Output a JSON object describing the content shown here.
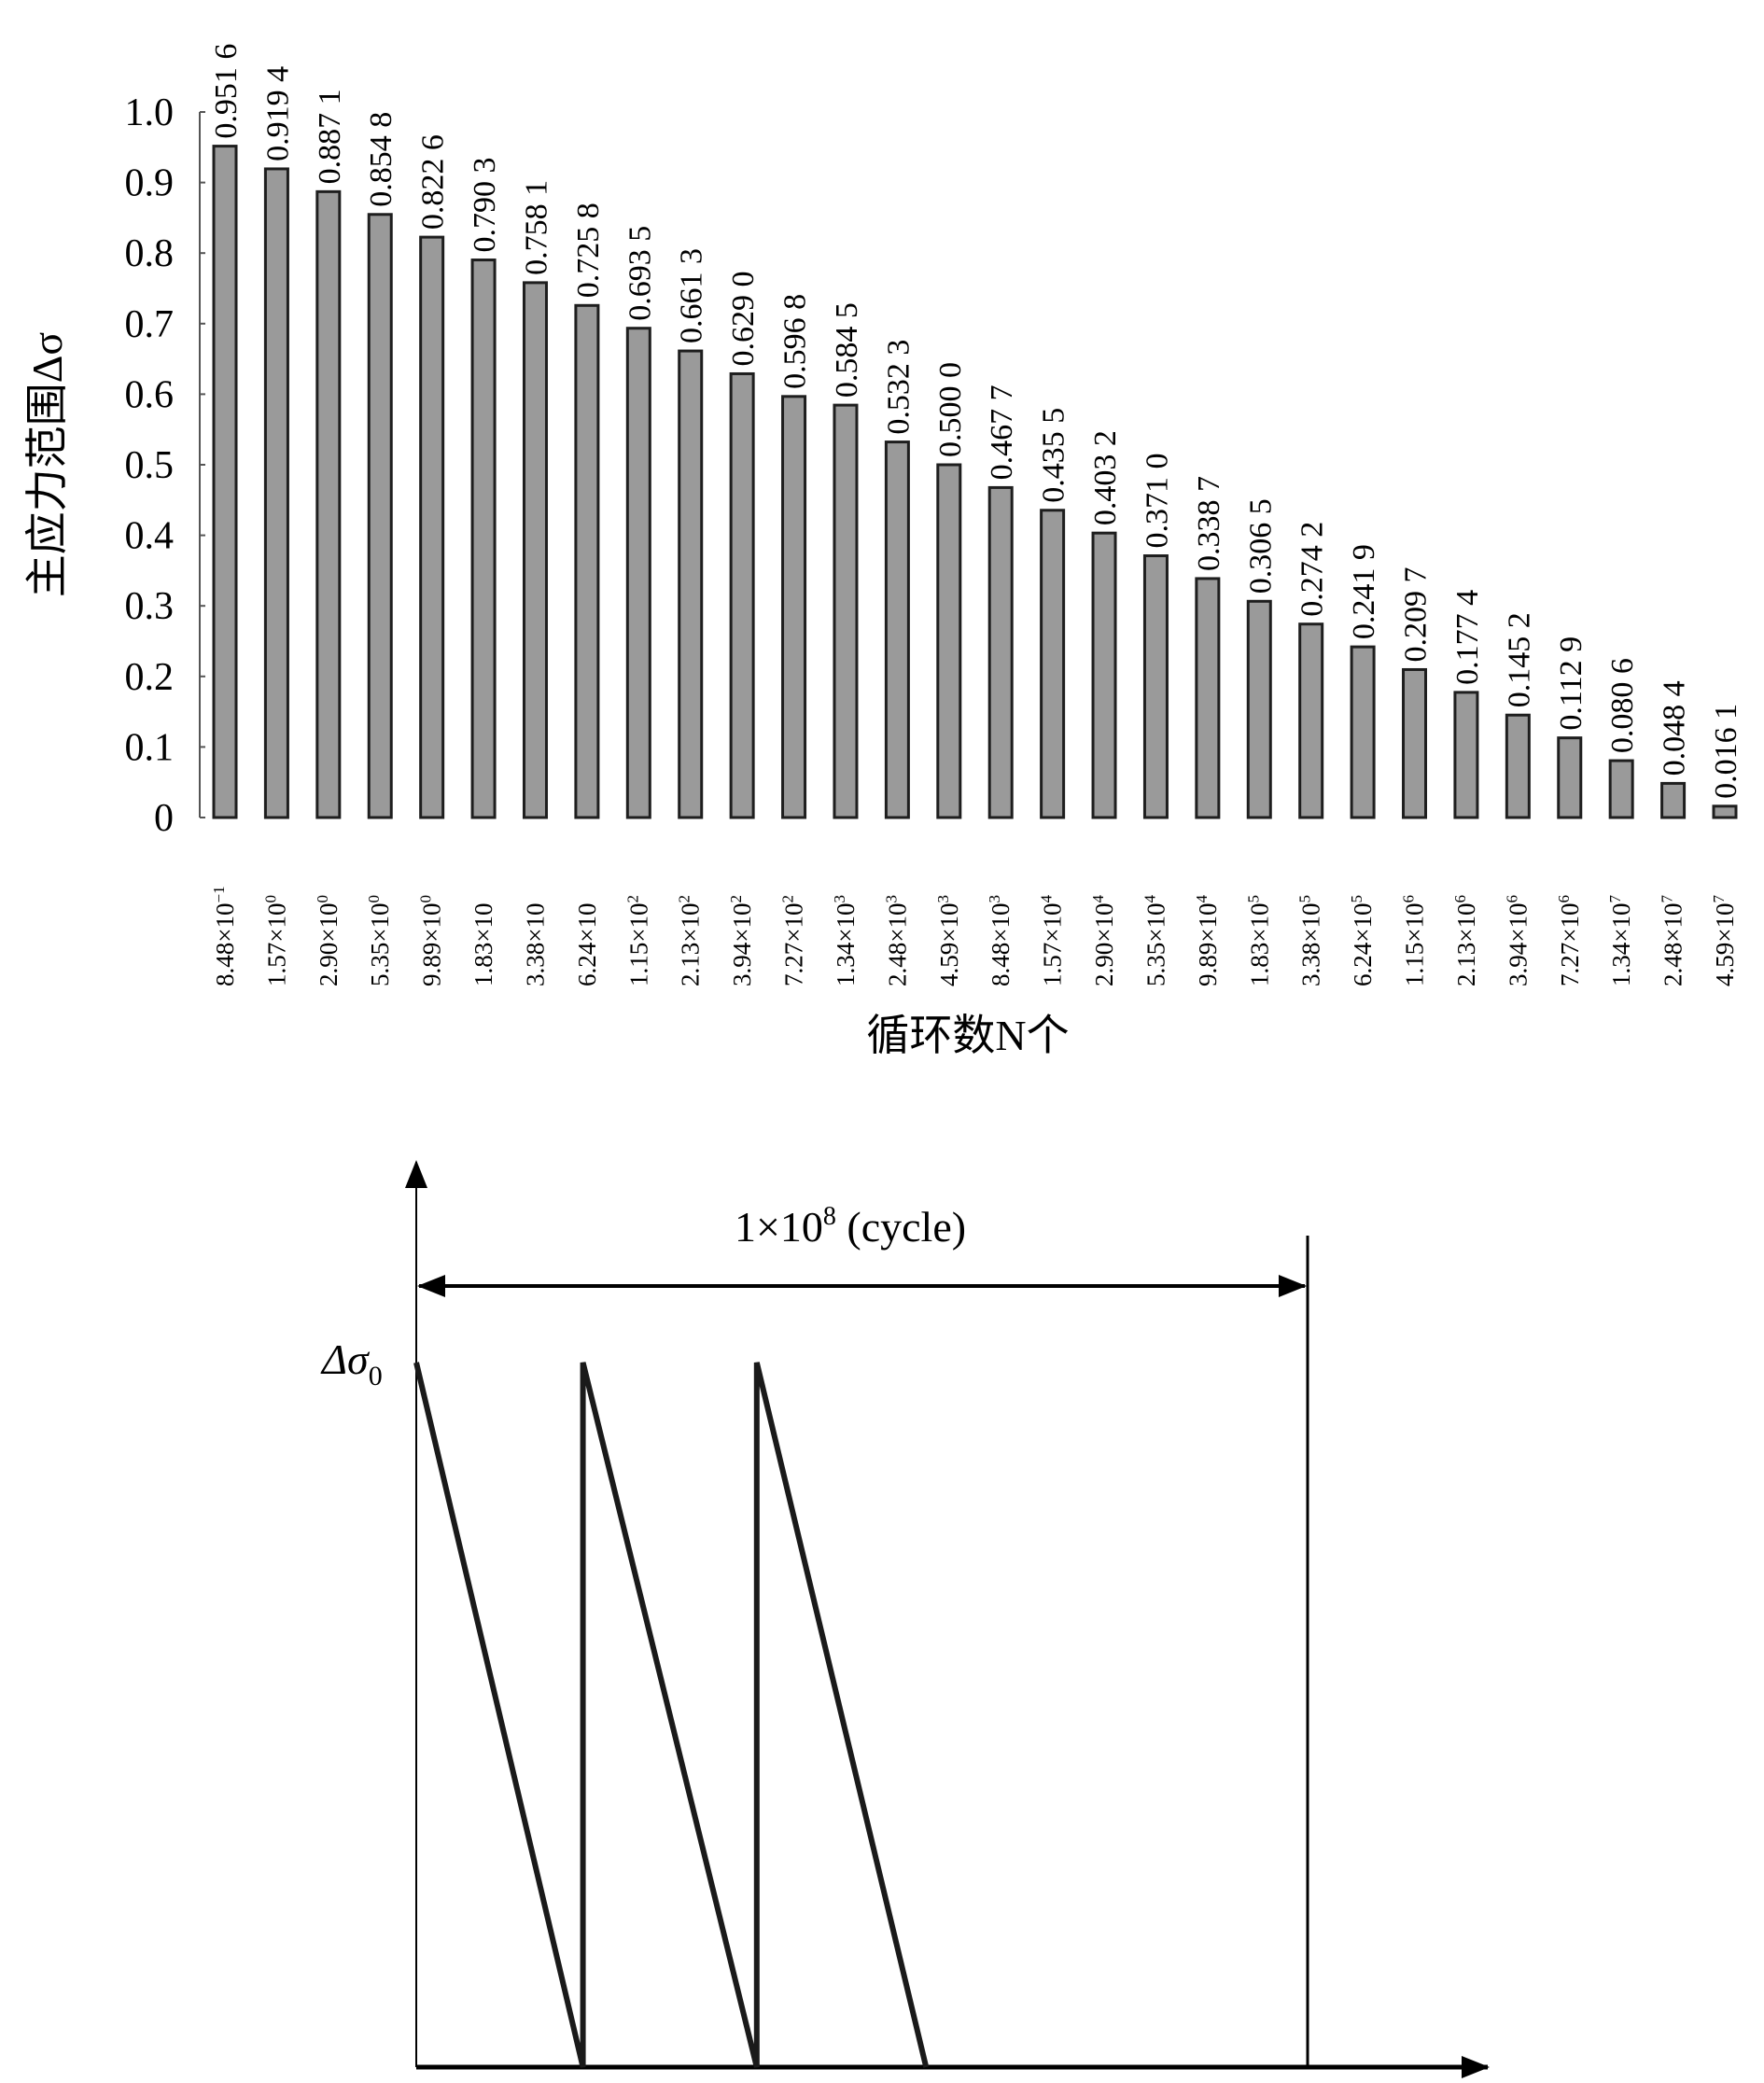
{
  "chart_data": [
    {
      "type": "bar",
      "xlabel": "循环数N个",
      "ylabel": "主应力范围Δσ",
      "ylim": [
        0,
        1.0
      ],
      "yticks": [
        "0",
        "0.1",
        "0.2",
        "0.3",
        "0.4",
        "0.5",
        "0.6",
        "0.7",
        "0.8",
        "0.9",
        "1.0"
      ],
      "grid": false,
      "categories": [
        {
          "m": "8.48×10",
          "e": "−1"
        },
        {
          "m": "1.57×10",
          "e": "0"
        },
        {
          "m": "2.90×10",
          "e": "0"
        },
        {
          "m": "5.35×10",
          "e": "0"
        },
        {
          "m": "9.89×10",
          "e": "0"
        },
        {
          "m": "1.83×10",
          "e": ""
        },
        {
          "m": "3.38×10",
          "e": ""
        },
        {
          "m": "6.24×10",
          "e": ""
        },
        {
          "m": "1.15×10",
          "e": "2"
        },
        {
          "m": "2.13×10",
          "e": "2"
        },
        {
          "m": "3.94×10",
          "e": "2"
        },
        {
          "m": "7.27×10",
          "e": "2"
        },
        {
          "m": "1.34×10",
          "e": "3"
        },
        {
          "m": "2.48×10",
          "e": "3"
        },
        {
          "m": "4.59×10",
          "e": "3"
        },
        {
          "m": "8.48×10",
          "e": "3"
        },
        {
          "m": "1.57×10",
          "e": "4"
        },
        {
          "m": "2.90×10",
          "e": "4"
        },
        {
          "m": "5.35×10",
          "e": "4"
        },
        {
          "m": "9.89×10",
          "e": "4"
        },
        {
          "m": "1.83×10",
          "e": "5"
        },
        {
          "m": "3.38×10",
          "e": "5"
        },
        {
          "m": "6.24×10",
          "e": "5"
        },
        {
          "m": "1.15×10",
          "e": "6"
        },
        {
          "m": "2.13×10",
          "e": "6"
        },
        {
          "m": "3.94×10",
          "e": "6"
        },
        {
          "m": "7.27×10",
          "e": "6"
        },
        {
          "m": "1.34×10",
          "e": "7"
        },
        {
          "m": "2.48×10",
          "e": "7"
        },
        {
          "m": "4.59×10",
          "e": "7"
        }
      ],
      "values": [
        0.9516,
        0.9194,
        0.8871,
        0.8548,
        0.8226,
        0.7903,
        0.7581,
        0.7258,
        0.6935,
        0.6613,
        0.629,
        0.5968,
        0.5845,
        0.5323,
        0.5,
        0.4677,
        0.4355,
        0.4032,
        0.371,
        0.3387,
        0.3065,
        0.2742,
        0.2419,
        0.2097,
        0.1774,
        0.1452,
        0.1129,
        0.0806,
        0.0484,
        0.0161
      ],
      "data_labels": [
        "0.951 6",
        "0.919 4",
        "0.887 1",
        "0.854 8",
        "0.822 6",
        "0.790 3",
        "0.758 1",
        "0.725 8",
        "0.693 5",
        "0.661 3",
        "0.629 0",
        "0.596 8",
        "0.584 5",
        "0.532 3",
        "0.500 0",
        "0.467 7",
        "0.435 5",
        "0.403 2",
        "0.371 0",
        "0.338 7",
        "0.306 5",
        "0.274 2",
        "0.241 9",
        "0.209 7",
        "0.177 4",
        "0.145 2",
        "0.112 9",
        "0.080 6",
        "0.048 4",
        "0.016 1"
      ],
      "colors": {
        "bar_fill": "#9a9a9a",
        "bar_edge": "#1e1e1e"
      }
    },
    {
      "type": "line",
      "y_label": {
        "main": "Δσ",
        "sub": "0"
      },
      "span_label": {
        "main": "1×10",
        "sup": "8",
        "rest": " (cycle)"
      },
      "series": [
        {
          "x": [
            0,
            0.187,
            0.187,
            0.382,
            0.382,
            0.572
          ],
          "y": [
            1,
            0,
            1,
            0,
            1,
            0
          ]
        }
      ],
      "span_end": 1.0
    }
  ]
}
